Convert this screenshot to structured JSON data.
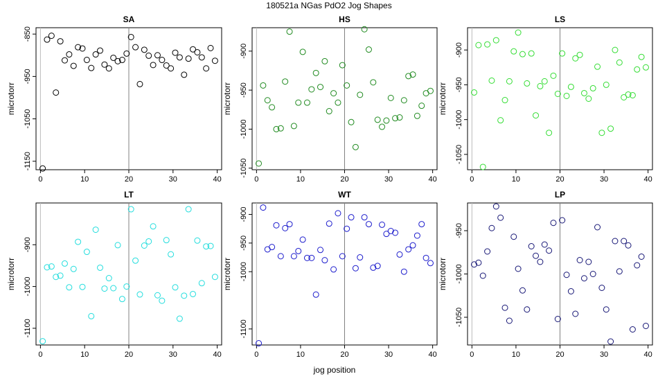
{
  "figure": {
    "title": "180521a   NGas PdO2 Jog Shapes",
    "xlabel": "jog position"
  },
  "chart_data": [
    {
      "type": "scatter",
      "title": "SA",
      "ylabel": "microtorr",
      "color": "#000000",
      "xlim": [
        -1,
        41
      ],
      "ylim": [
        -1170,
        -835
      ],
      "xticks": [
        0,
        10,
        20,
        30,
        40
      ],
      "yticks": [
        -850,
        -950,
        -1050,
        -1150
      ],
      "vline": 20,
      "x": [
        0.5,
        1.5,
        2.5,
        3.5,
        4.5,
        5.5,
        6.5,
        7.5,
        8.5,
        9.5,
        10.5,
        11.5,
        12.5,
        13.5,
        14.5,
        15.5,
        16.5,
        17.5,
        18.5,
        19.5,
        20.5,
        21.5,
        22.5,
        23.5,
        24.5,
        25.5,
        26.5,
        27.5,
        28.5,
        29.5,
        30.5,
        31.5,
        32.5,
        33.5,
        34.5,
        35.5,
        36.5,
        37.5,
        38.5,
        39.5
      ],
      "y": [
        -1167,
        -863,
        -854,
        -988,
        -867,
        -912,
        -898,
        -925,
        -881,
        -884,
        -911,
        -930,
        -898,
        -889,
        -922,
        -931,
        -906,
        -914,
        -911,
        -896,
        -857,
        -881,
        -968,
        -887,
        -901,
        -923,
        -900,
        -911,
        -924,
        -931,
        -894,
        -905,
        -946,
        -908,
        -886,
        -893,
        -905,
        -931,
        -883,
        -913
      ]
    },
    {
      "type": "scatter",
      "title": "HS",
      "ylabel": "microtorr",
      "color": "#1f8a1f",
      "xlim": [
        -1,
        41
      ],
      "ylim": [
        -1052,
        -870
      ],
      "xticks": [
        0,
        10,
        20,
        30,
        40
      ],
      "yticks": [
        -900,
        -950,
        -1000,
        -1050
      ],
      "vline": 20,
      "x": [
        0.5,
        1.5,
        2.5,
        3.5,
        4.5,
        5.5,
        6.5,
        7.5,
        8.5,
        9.5,
        10.5,
        11.5,
        12.5,
        13.5,
        14.5,
        15.5,
        16.5,
        17.5,
        18.5,
        19.5,
        20.5,
        21.5,
        22.5,
        23.5,
        24.5,
        25.5,
        26.5,
        27.5,
        28.5,
        29.5,
        30.5,
        31.5,
        32.5,
        33.5,
        34.5,
        35.5,
        36.5,
        37.5,
        38.5,
        39.5
      ],
      "y": [
        -1044,
        -944,
        -963,
        -972,
        -1000,
        -999,
        -939,
        -875,
        -996,
        -966,
        -901,
        -966,
        -949,
        -928,
        -946,
        -913,
        -977,
        -954,
        -966,
        -918,
        -944,
        -991,
        -1023,
        -956,
        -872,
        -898,
        -940,
        -988,
        -997,
        -989,
        -960,
        -986,
        -985,
        -963,
        -932,
        -930,
        -983,
        -970,
        -954,
        -951
      ]
    },
    {
      "type": "scatter",
      "title": "LS",
      "ylabel": "microtorr",
      "color": "#33dd33",
      "xlim": [
        -1,
        41
      ],
      "ylim": [
        -1072,
        -868
      ],
      "xticks": [
        0,
        10,
        20,
        30,
        40
      ],
      "yticks": [
        -900,
        -950,
        -1000,
        -1050
      ],
      "vline": 20,
      "x": [
        0.5,
        1.5,
        2.5,
        3.5,
        4.5,
        5.5,
        6.5,
        7.5,
        8.5,
        9.5,
        10.5,
        11.5,
        12.5,
        13.5,
        14.5,
        15.5,
        16.5,
        17.5,
        18.5,
        19.5,
        20.5,
        21.5,
        22.5,
        23.5,
        24.5,
        25.5,
        26.5,
        27.5,
        28.5,
        29.5,
        30.5,
        31.5,
        32.5,
        33.5,
        34.5,
        35.5,
        36.5,
        37.5,
        38.5,
        39.5
      ],
      "y": [
        -961,
        -893,
        -1068,
        -892,
        -944,
        -886,
        -1001,
        -972,
        -945,
        -902,
        -875,
        -906,
        -948,
        -905,
        -994,
        -952,
        -945,
        -1019,
        -937,
        -963,
        -905,
        -966,
        -953,
        -912,
        -907,
        -962,
        -970,
        -955,
        -924,
        -1019,
        -950,
        -1013,
        -900,
        -918,
        -968,
        -964,
        -965,
        -928,
        -910,
        -925
      ]
    },
    {
      "type": "scatter",
      "title": "LT",
      "ylabel": "microtorr",
      "color": "#22dddd",
      "xlim": [
        -1,
        41
      ],
      "ylim": [
        -1140,
        -800
      ],
      "xticks": [
        0,
        10,
        20,
        30,
        40
      ],
      "yticks": [
        -900,
        -1000,
        -1100
      ],
      "vline": 20,
      "x": [
        0.5,
        1.5,
        2.5,
        3.5,
        4.5,
        5.5,
        6.5,
        7.5,
        8.5,
        9.5,
        10.5,
        11.5,
        12.5,
        13.5,
        14.5,
        15.5,
        16.5,
        17.5,
        18.5,
        19.5,
        20.5,
        21.5,
        22.5,
        23.5,
        24.5,
        25.5,
        26.5,
        27.5,
        28.5,
        29.5,
        30.5,
        31.5,
        32.5,
        33.5,
        34.5,
        35.5,
        36.5,
        37.5,
        38.5,
        39.5
      ],
      "y": [
        -1131,
        -954,
        -952,
        -977,
        -974,
        -945,
        -1002,
        -958,
        -893,
        -1001,
        -917,
        -1071,
        -864,
        -955,
        -1005,
        -980,
        -1004,
        -901,
        -1030,
        -1000,
        -815,
        -938,
        -1019,
        -902,
        -892,
        -856,
        -1021,
        -1034,
        -889,
        -923,
        -1002,
        -1077,
        -1022,
        -815,
        -1018,
        -890,
        -992,
        -904,
        -903,
        -977
      ]
    },
    {
      "type": "scatter",
      "title": "WT",
      "ylabel": "microtorr",
      "color": "#1a1acc",
      "xlim": [
        -1,
        41
      ],
      "ylim": [
        -1128,
        -880
      ],
      "xticks": [
        0,
        10,
        20,
        30,
        40
      ],
      "yticks": [
        -900,
        -950,
        -1000,
        -1100
      ],
      "vline": 20,
      "x": [
        0.5,
        1.5,
        2.5,
        3.5,
        4.5,
        5.5,
        6.5,
        7.5,
        8.5,
        9.5,
        10.5,
        11.5,
        12.5,
        13.5,
        14.5,
        15.5,
        16.5,
        17.5,
        18.5,
        19.5,
        20.5,
        21.5,
        22.5,
        23.5,
        24.5,
        25.5,
        26.5,
        27.5,
        28.5,
        29.5,
        30.5,
        31.5,
        32.5,
        33.5,
        34.5,
        35.5,
        36.5,
        37.5,
        38.5,
        39.5
      ],
      "y": [
        -1125,
        -888,
        -961,
        -957,
        -919,
        -973,
        -924,
        -917,
        -973,
        -964,
        -944,
        -976,
        -976,
        -1040,
        -962,
        -980,
        -916,
        -996,
        -898,
        -973,
        -925,
        -905,
        -994,
        -975,
        -905,
        -917,
        -993,
        -990,
        -918,
        -934,
        -929,
        -932,
        -970,
        -1000,
        -961,
        -954,
        -937,
        -917,
        -976,
        -985
      ]
    },
    {
      "type": "scatter",
      "title": "LP",
      "ylabel": "microtorr",
      "color": "#151575",
      "xlim": [
        -1,
        41
      ],
      "ylim": [
        -1082,
        -918
      ],
      "xticks": [
        0,
        10,
        20,
        30,
        40
      ],
      "yticks": [
        -950,
        -1000,
        -1050
      ],
      "vline": 20,
      "x": [
        0.5,
        1.5,
        2.5,
        3.5,
        4.5,
        5.5,
        6.5,
        7.5,
        8.5,
        9.5,
        10.5,
        11.5,
        12.5,
        13.5,
        14.5,
        15.5,
        16.5,
        17.5,
        18.5,
        19.5,
        20.5,
        21.5,
        22.5,
        23.5,
        24.5,
        25.5,
        26.5,
        27.5,
        28.5,
        29.5,
        30.5,
        31.5,
        32.5,
        33.5,
        34.5,
        35.5,
        36.5,
        37.5,
        38.5,
        39.5
      ],
      "y": [
        -989,
        -987,
        -1002,
        -974,
        -947,
        -922,
        -935,
        -1039,
        -1054,
        -957,
        -994,
        -1019,
        -1041,
        -968,
        -979,
        -986,
        -966,
        -973,
        -941,
        -1052,
        -938,
        -1001,
        -1020,
        -1046,
        -984,
        -1005,
        -986,
        -1000,
        -946,
        -1016,
        -1041,
        -1078,
        -962,
        -997,
        -962,
        -967,
        -1064,
        -990,
        -980,
        -1060
      ]
    }
  ]
}
